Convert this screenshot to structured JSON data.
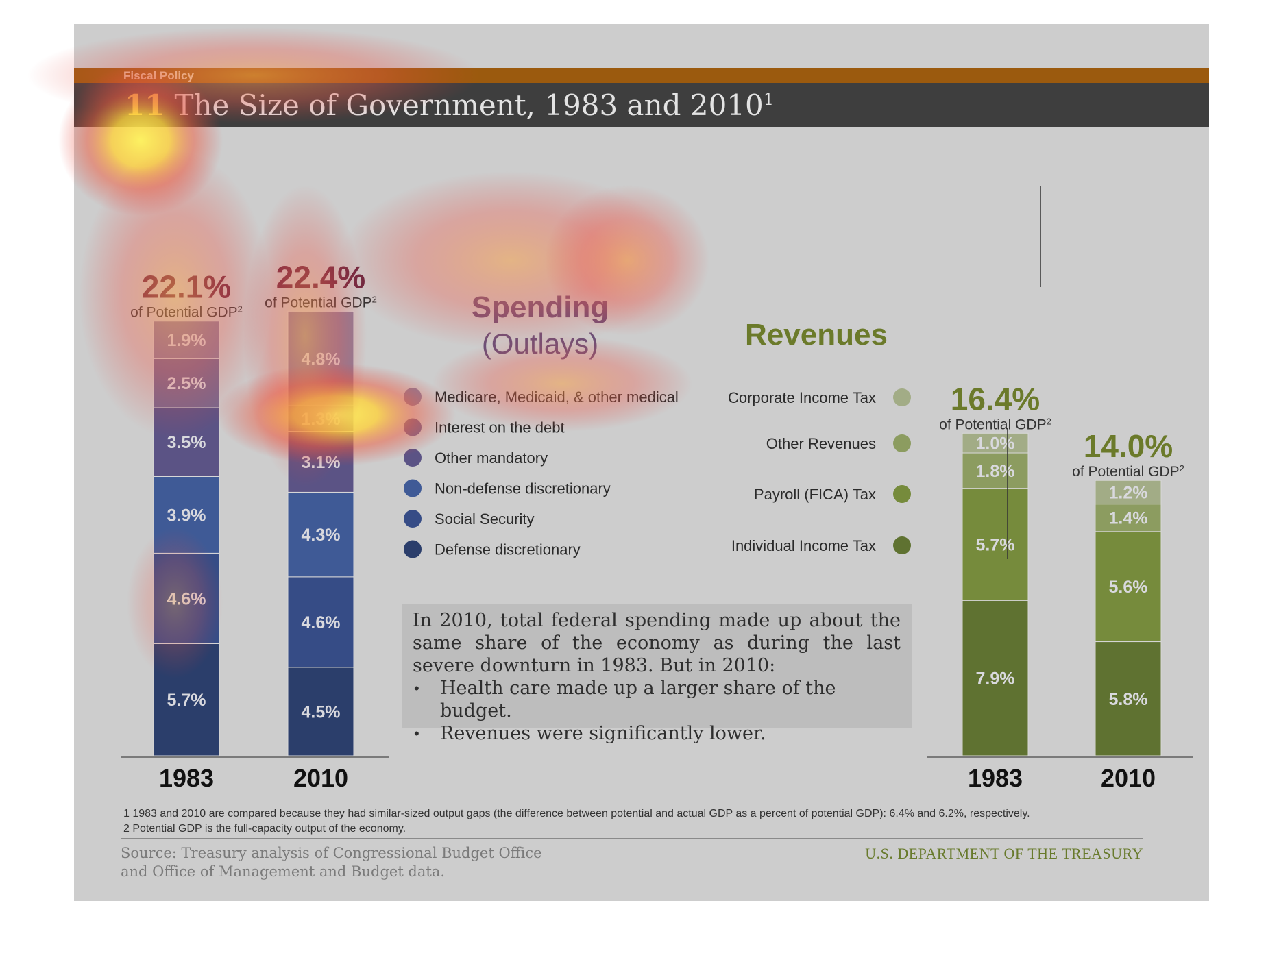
{
  "header": {
    "section": "Fiscal Policy",
    "number": "11",
    "title": "The Size of Government, 1983 and 2010",
    "title_sup": "1"
  },
  "chart_data": [
    {
      "type": "bar",
      "stacked": true,
      "title": "Spending (Outlays)",
      "title_line1": "Spending",
      "title_line2": "(Outlays)",
      "categories": [
        "1983",
        "2010"
      ],
      "totals": [
        "22.1%",
        "22.4%"
      ],
      "total_values": [
        22.1,
        22.4
      ],
      "total_sublabel": "of Potential GDP",
      "total_sublabel_sup": "2",
      "unit": "% of Potential GDP",
      "series": [
        {
          "name": "Defense discretionary",
          "values": [
            5.7,
            4.5
          ],
          "labels": [
            "5.7%",
            "4.5%"
          ],
          "color": "#2b3e6b"
        },
        {
          "name": "Social Security",
          "values": [
            4.6,
            4.6
          ],
          "labels": [
            "4.6%",
            "4.6%"
          ],
          "color": "#364c86"
        },
        {
          "name": "Non-defense discretionary",
          "values": [
            3.9,
            4.3
          ],
          "labels": [
            "3.9%",
            "4.3%"
          ],
          "color": "#3f5a96"
        },
        {
          "name": "Other mandatory",
          "values": [
            3.5,
            3.1
          ],
          "labels": [
            "3.5%",
            "3.1%"
          ],
          "color": "#5b5385"
        },
        {
          "name": "Interest on the debt",
          "values": [
            2.5,
            1.3
          ],
          "labels": [
            "2.5%",
            "1.3%"
          ],
          "color": "#76698f"
        },
        {
          "name": "Medicare, Medicaid, & other medical",
          "values": [
            1.9,
            4.8
          ],
          "labels": [
            "1.9%",
            "4.8%"
          ],
          "color": "#8b7f9b"
        }
      ]
    },
    {
      "type": "bar",
      "stacked": true,
      "title": "Revenues",
      "categories": [
        "1983",
        "2010"
      ],
      "totals": [
        "16.4%",
        "14.0%"
      ],
      "total_values": [
        16.4,
        14.0
      ],
      "total_sublabel": "of Potential GDP",
      "total_sublabel_sup": "2",
      "unit": "% of Potential GDP",
      "series": [
        {
          "name": "Individual Income Tax",
          "values": [
            7.9,
            5.8
          ],
          "labels": [
            "7.9%",
            "5.8%"
          ],
          "color": "#5f7231"
        },
        {
          "name": "Payroll (FICA) Tax",
          "values": [
            5.7,
            5.6
          ],
          "labels": [
            "5.7%",
            "5.6%"
          ],
          "color": "#768b3c"
        },
        {
          "name": "Other Revenues",
          "values": [
            1.8,
            1.4
          ],
          "labels": [
            "1.8%",
            "1.4%"
          ],
          "color": "#8c9c60"
        },
        {
          "name": "Corporate Income Tax",
          "values": [
            1.0,
            1.2
          ],
          "labels": [
            "1.0%",
            "1.2%"
          ],
          "color": "#a2ac86"
        }
      ]
    }
  ],
  "callout": {
    "intro": "In 2010, total federal spending made up about the same share of the economy as during the last severe downturn in 1983. But in 2010:",
    "bullets": [
      "Health care made up a larger share of the budget.",
      "Revenues were significantly lower."
    ]
  },
  "footnotes": [
    "1 1983 and 2010 are compared because they had similar-sized output gaps (the difference between potential and actual GDP as a percent of potential GDP): 6.4% and 6.2%, respectively.",
    "2 Potential GDP is the full-capacity output of the economy."
  ],
  "source": {
    "line1": "Source: Treasury analysis of Congressional Budget Office",
    "line2": "and Office of Management and Budget data."
  },
  "agency": "U.S. DEPARTMENT OF THE TREASURY",
  "colors": {
    "spending_title": "#6a5078",
    "revenue_accent": "#6b7a2a",
    "total_spending": "#6a2740",
    "heat_hot": "#fff25a",
    "heat_cool": "#e2433a"
  }
}
